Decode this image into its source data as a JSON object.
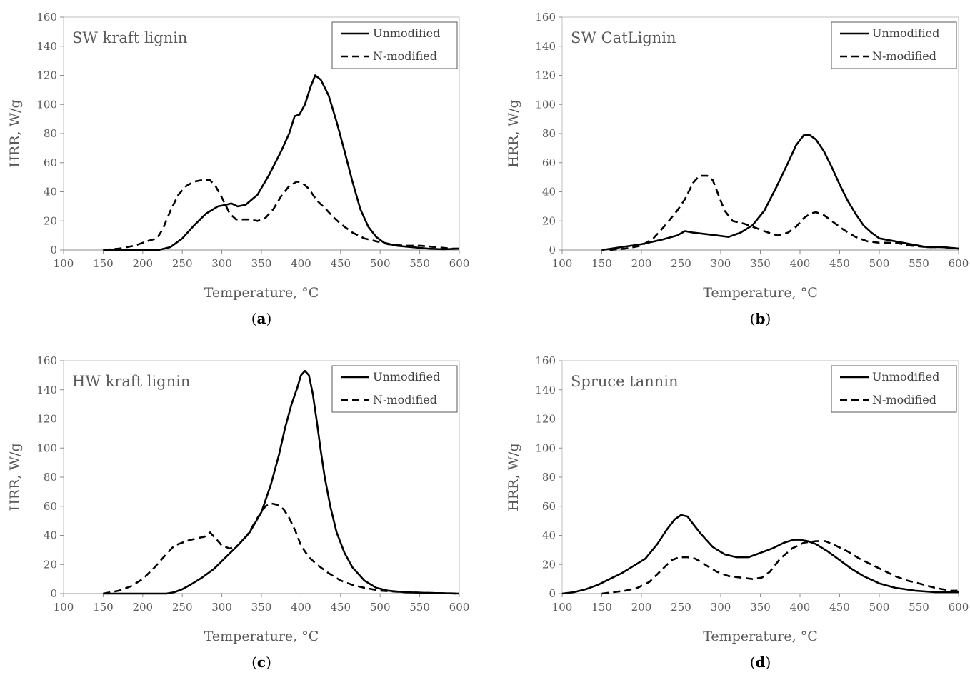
{
  "chart_data": [
    {
      "type": "line",
      "title": "SW kraft lignin",
      "caption": "a",
      "xlabel": "Temperature, °C",
      "ylabel": "HRR, W/g",
      "xlim": [
        100,
        600
      ],
      "ylim": [
        0,
        160
      ],
      "xticks": [
        "100",
        "150",
        "200",
        "250",
        "300",
        "350",
        "400",
        "450",
        "500",
        "550",
        "600"
      ],
      "yticks": [
        "0",
        "20",
        "40",
        "60",
        "80",
        "100",
        "120",
        "140",
        "160"
      ],
      "legend": "top-right",
      "series": [
        {
          "name": "Unmodified",
          "style": "solid",
          "color": "#000000",
          "x": [
            150,
            200,
            220,
            235,
            250,
            265,
            280,
            295,
            305,
            312,
            320,
            330,
            345,
            360,
            375,
            385,
            392,
            398,
            405,
            412,
            418,
            425,
            435,
            445,
            455,
            465,
            475,
            485,
            495,
            505,
            520,
            540,
            560,
            580,
            600
          ],
          "y": [
            0,
            0,
            0,
            2,
            8,
            17,
            25,
            30,
            31,
            32,
            30,
            31,
            38,
            52,
            68,
            80,
            92,
            93,
            100,
            112,
            120,
            117,
            106,
            88,
            68,
            47,
            28,
            16,
            9,
            5,
            3,
            2,
            1,
            0.5,
            1
          ]
        },
        {
          "name": "N-modified",
          "style": "dashed",
          "color": "#000000",
          "x": [
            150,
            170,
            190,
            205,
            218,
            225,
            235,
            245,
            255,
            265,
            275,
            285,
            292,
            300,
            310,
            318,
            325,
            335,
            345,
            355,
            365,
            375,
            385,
            395,
            402,
            410,
            420,
            430,
            440,
            450,
            465,
            480,
            495,
            510,
            530,
            550,
            570,
            590,
            600
          ],
          "y": [
            0,
            1,
            3,
            6,
            8,
            14,
            27,
            38,
            44,
            47,
            48,
            48,
            44,
            36,
            25,
            21,
            21,
            21,
            20,
            22,
            28,
            37,
            44,
            47,
            46,
            42,
            34,
            29,
            23,
            18,
            12,
            8,
            6,
            4,
            3,
            3,
            2,
            1,
            1
          ]
        }
      ]
    },
    {
      "type": "line",
      "title": "SW CatLignin",
      "caption": "b",
      "xlabel": "Temperature, °C",
      "ylabel": "HRR, W/g",
      "xlim": [
        100,
        600
      ],
      "ylim": [
        0,
        160
      ],
      "xticks": [
        "100",
        "150",
        "200",
        "250",
        "300",
        "350",
        "400",
        "450",
        "500",
        "550",
        "600"
      ],
      "yticks": [
        "0",
        "20",
        "40",
        "60",
        "80",
        "100",
        "120",
        "140",
        "160"
      ],
      "legend": "top-right",
      "series": [
        {
          "name": "Unmodified",
          "style": "solid",
          "color": "#000000",
          "x": [
            150,
            175,
            200,
            225,
            245,
            255,
            265,
            280,
            295,
            310,
            325,
            340,
            355,
            370,
            385,
            395,
            405,
            412,
            420,
            430,
            440,
            450,
            460,
            470,
            480,
            490,
            500,
            520,
            540,
            560,
            580,
            600
          ],
          "y": [
            0,
            2,
            4,
            7,
            10,
            13,
            12,
            11,
            10,
            9,
            12,
            17,
            27,
            43,
            60,
            72,
            79,
            79,
            76,
            68,
            57,
            45,
            34,
            25,
            17,
            12,
            8,
            6,
            4,
            2,
            2,
            1
          ]
        },
        {
          "name": "N-modified",
          "style": "dashed",
          "color": "#000000",
          "x": [
            160,
            180,
            200,
            215,
            230,
            245,
            255,
            265,
            273,
            283,
            290,
            297,
            305,
            315,
            330,
            345,
            360,
            372,
            385,
            395,
            405,
            413,
            420,
            430,
            440,
            455,
            470,
            485,
            500,
            520,
            540,
            560,
            580,
            600
          ],
          "y": [
            0,
            1,
            3,
            8,
            17,
            27,
            35,
            46,
            51,
            51,
            48,
            38,
            27,
            20,
            18,
            15,
            12,
            10,
            12,
            16,
            22,
            25,
            26,
            24,
            20,
            14,
            9,
            6,
            5,
            5,
            3,
            2,
            2,
            1
          ]
        }
      ]
    },
    {
      "type": "line",
      "title": "HW kraft lignin",
      "caption": "c",
      "xlabel": "Temperature, °C",
      "ylabel": "HRR, W/g",
      "xlim": [
        100,
        600
      ],
      "ylim": [
        0,
        160
      ],
      "xticks": [
        "100",
        "150",
        "200",
        "250",
        "300",
        "350",
        "400",
        "450",
        "500",
        "550",
        "600"
      ],
      "yticks": [
        "0",
        "20",
        "40",
        "60",
        "80",
        "100",
        "120",
        "140",
        "160"
      ],
      "legend": "top-right",
      "series": [
        {
          "name": "Unmodified",
          "style": "solid",
          "color": "#000000",
          "x": [
            150,
            200,
            230,
            240,
            250,
            260,
            275,
            290,
            305,
            320,
            335,
            350,
            362,
            372,
            380,
            388,
            395,
            400,
            405,
            410,
            415,
            420,
            425,
            430,
            437,
            445,
            455,
            465,
            480,
            495,
            510,
            530,
            560,
            600
          ],
          "y": [
            0,
            0,
            0,
            1,
            3,
            6,
            11,
            17,
            25,
            33,
            42,
            56,
            75,
            95,
            114,
            130,
            141,
            150,
            153,
            150,
            137,
            118,
            98,
            80,
            60,
            42,
            28,
            18,
            9,
            4,
            2,
            1,
            0.5,
            0
          ]
        },
        {
          "name": "N-modified",
          "style": "dashed",
          "color": "#000000",
          "x": [
            150,
            170,
            185,
            200,
            215,
            228,
            240,
            255,
            268,
            278,
            285,
            292,
            300,
            310,
            320,
            332,
            345,
            355,
            362,
            370,
            378,
            385,
            393,
            400,
            410,
            420,
            435,
            450,
            465,
            480,
            500,
            530,
            560,
            600
          ],
          "y": [
            0,
            2,
            5,
            10,
            18,
            26,
            33,
            36,
            38,
            39,
            42,
            38,
            33,
            31,
            33,
            40,
            52,
            60,
            62,
            61,
            58,
            52,
            43,
            33,
            25,
            20,
            14,
            9,
            6,
            4,
            2,
            1,
            0.5,
            0
          ]
        }
      ]
    },
    {
      "type": "line",
      "title": "Spruce tannin",
      "caption": "d",
      "xlabel": "Temperature, °C",
      "ylabel": "HRR, W/g",
      "xlim": [
        100,
        600
      ],
      "ylim": [
        0,
        160
      ],
      "xticks": [
        "100",
        "150",
        "200",
        "250",
        "300",
        "350",
        "400",
        "450",
        "500",
        "550",
        "600"
      ],
      "yticks": [
        "0",
        "20",
        "40",
        "60",
        "80",
        "100",
        "120",
        "140",
        "160"
      ],
      "legend": "top-right",
      "series": [
        {
          "name": "Unmodified",
          "style": "solid",
          "color": "#000000",
          "x": [
            100,
            115,
            130,
            145,
            160,
            175,
            190,
            205,
            220,
            232,
            242,
            250,
            258,
            265,
            275,
            290,
            305,
            320,
            335,
            350,
            365,
            380,
            392,
            400,
            410,
            420,
            435,
            450,
            465,
            480,
            500,
            520,
            545,
            570,
            600
          ],
          "y": [
            0,
            1,
            3,
            6,
            10,
            14,
            19,
            24,
            34,
            44,
            51,
            54,
            53,
            48,
            41,
            32,
            27,
            25,
            25,
            28,
            31,
            35,
            37,
            37,
            36,
            34,
            29,
            23,
            17,
            12,
            7,
            4,
            2,
            1,
            1
          ]
        },
        {
          "name": "N-modified",
          "style": "dashed",
          "color": "#000000",
          "x": [
            150,
            165,
            180,
            195,
            210,
            225,
            238,
            248,
            258,
            268,
            280,
            295,
            310,
            325,
            340,
            352,
            362,
            375,
            390,
            405,
            420,
            432,
            445,
            460,
            475,
            490,
            505,
            520,
            535,
            550,
            570,
            590,
            600
          ],
          "y": [
            0,
            1,
            2,
            4,
            8,
            16,
            23,
            25,
            25,
            24,
            20,
            15,
            12,
            11,
            10,
            11,
            15,
            24,
            31,
            35,
            36,
            36,
            33,
            29,
            24,
            20,
            16,
            12,
            9,
            7,
            4,
            2,
            2
          ]
        }
      ]
    }
  ]
}
